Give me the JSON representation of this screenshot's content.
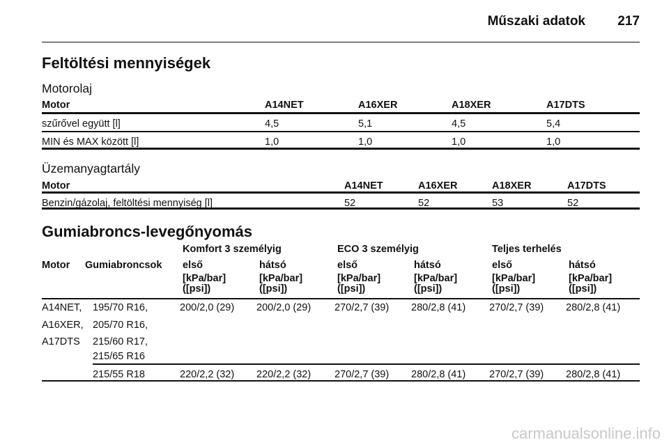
{
  "header": {
    "title": "Műszaki adatok",
    "page": "217"
  },
  "section_title": "Feltöltési mennyiségek",
  "oil": {
    "title": "Motorolaj",
    "header": [
      "Motor",
      "A14NET",
      "A16XER",
      "A18XER",
      "A17DTS"
    ],
    "rows": [
      [
        "szűrővel együtt [l]",
        "4,5",
        "5,1",
        "4,5",
        "5,4"
      ],
      [
        "MIN és MAX között [l]",
        "1,0",
        "1,0",
        "1,0",
        "1,0"
      ]
    ]
  },
  "fuel": {
    "title": "Üzemanyagtartály",
    "header": [
      "Motor",
      "A14NET",
      "A16XER",
      "A18XER",
      "A17DTS"
    ],
    "rows": [
      [
        "Benzin/gázolaj, feltöltési mennyiség [l]",
        "52",
        "52",
        "53",
        "52"
      ]
    ]
  },
  "tyre": {
    "title": "Gumiabroncs-levegőnyomás",
    "groups": [
      "Komfort 3 személyig",
      "ECO 3 személyig",
      "Teljes terhelés"
    ],
    "header": [
      "Motor",
      "Gumiabroncsok",
      "első",
      "hátsó",
      "első",
      "hátsó",
      "első",
      "hátsó"
    ],
    "units": [
      "[kPa/bar]\n([psi])",
      "[kPa/bar]\n([psi])",
      "[kPa/bar]\n([psi])",
      "[kPa/bar]\n([psi])",
      "[kPa/bar]\n([psi])",
      "[kPa/bar]\n([psi])"
    ],
    "rows": [
      {
        "motor": [
          "A14NET,",
          "A16XER,",
          "A17DTS"
        ],
        "tyres": [
          "195/70 R16,",
          "205/70 R16,",
          "215/60 R17,",
          "215/65 R16"
        ],
        "values": [
          "200/2,0 (29)",
          "200/2,0 (29)",
          "270/2,7 (39)",
          "280/2,8 (41)",
          "270/2,7 (39)",
          "280/2,8 (41)"
        ]
      },
      {
        "motor": [],
        "tyres": [
          "215/55 R18"
        ],
        "values": [
          "220/2,2 (32)",
          "220/2,2 (32)",
          "270/2,7 (39)",
          "280/2,8 (41)",
          "270/2,7 (39)",
          "280/2,8 (41)"
        ]
      }
    ]
  },
  "watermark": "carmanualsonline.info"
}
